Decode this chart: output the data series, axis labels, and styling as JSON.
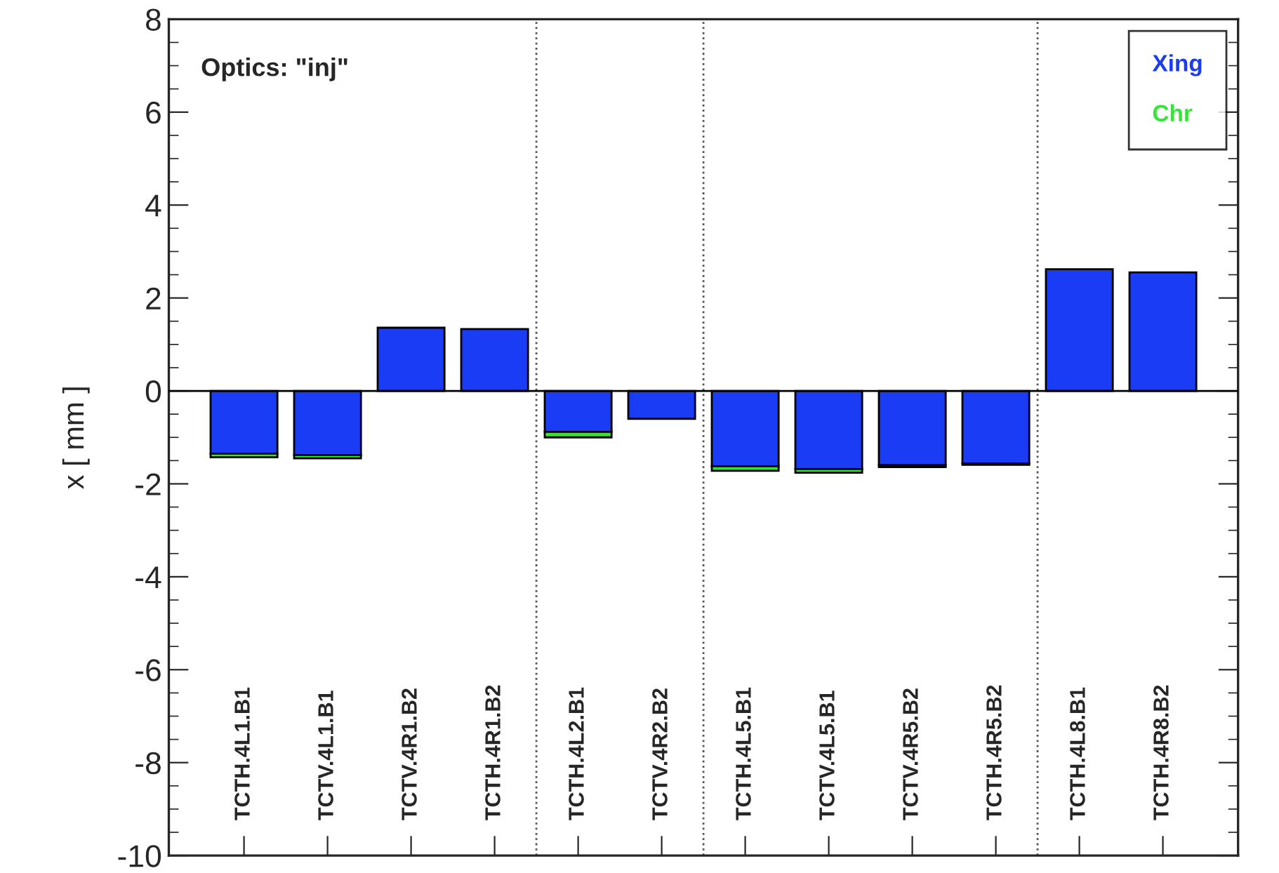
{
  "chart_data": {
    "type": "bar",
    "stacked": true,
    "ylabel": "x [ mm ]",
    "categories": [
      "TCTH.4L1.B1",
      "TCTV.4L1.B1",
      "TCTV.4R1.B2",
      "TCTH.4R1.B2",
      "TCTH.4L2.B1",
      "TCTV.4R2.B2",
      "TCTH.4L5.B1",
      "TCTV.4L5.B1",
      "TCTV.4R5.B2",
      "TCTH.4R5.B2",
      "TCTH.4L8.B1",
      "TCTH.4R8.B2"
    ],
    "series": [
      {
        "name": "Xing",
        "color": "#1a3cf5",
        "values": [
          -1.35,
          -1.38,
          1.36,
          1.33,
          -0.88,
          -0.6,
          -1.62,
          -1.68,
          -1.6,
          -1.56,
          2.62,
          2.55
        ]
      },
      {
        "name": "Chr",
        "color": "#33e633",
        "values": [
          -0.08,
          -0.07,
          null,
          null,
          -0.12,
          null,
          -0.1,
          -0.08,
          -0.04,
          -0.03,
          null,
          null
        ]
      }
    ],
    "ylim": [
      -10,
      8
    ],
    "yticks": [
      -10,
      -8,
      -6,
      -4,
      -2,
      0,
      2,
      4,
      6,
      8
    ],
    "annotations": [
      "Optics: \"inj\""
    ],
    "legend": "top right",
    "grid": false
  }
}
